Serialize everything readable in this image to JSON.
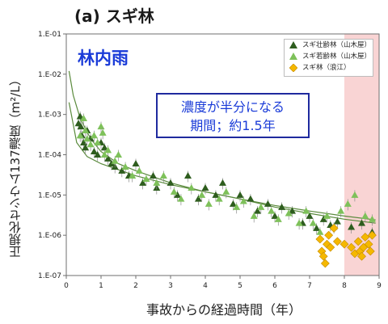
{
  "panel_title": "(a) スギ林",
  "inset_title": "林内雨",
  "callout": {
    "line1": "濃度が半分になる",
    "line2": "期間；約1.5年"
  },
  "colors": {
    "dark_green": "#2e5d1e",
    "light_green": "#7ec15a",
    "orange": "#f5b800",
    "band": "#f9d4d4",
    "curve": "#5a8a3c"
  },
  "chart_data": {
    "type": "scatter",
    "title": "",
    "xlabel": "事故からの経過時間（年）",
    "ylabel": "正規化セシウム137濃度（m²/L）",
    "xlim": [
      0,
      9
    ],
    "ylim": [
      1e-07,
      0.1
    ],
    "y_scale": "log",
    "x_ticks": [
      "0",
      "1",
      "2",
      "3",
      "4",
      "5",
      "6",
      "7",
      "8",
      "9"
    ],
    "y_ticks": [
      "1.E-07",
      "1.E-06",
      "1.E-05",
      "1.E-04",
      "1.E-03",
      "1.E-02",
      "1.E-01"
    ],
    "shaded_region": {
      "x_from": 8.0,
      "x_to": 9.0
    },
    "legend_position": "top-right",
    "series": [
      {
        "name": "スギ壮齢林（山木屋）",
        "marker": "triangle",
        "color": "#2e5d1e",
        "points": [
          [
            0.35,
            0.0006
          ],
          [
            0.4,
            0.0009
          ],
          [
            0.42,
            0.0005
          ],
          [
            0.45,
            0.0003
          ],
          [
            0.5,
            0.0002
          ],
          [
            0.55,
            0.00015
          ],
          [
            0.6,
            0.0004
          ],
          [
            0.7,
            0.00025
          ],
          [
            0.8,
            0.00012
          ],
          [
            0.9,
            0.0001
          ],
          [
            1.0,
            0.0002
          ],
          [
            1.1,
            0.00015
          ],
          [
            1.2,
            8e-05
          ],
          [
            1.3,
            6e-05
          ],
          [
            1.4,
            5e-05
          ],
          [
            1.6,
            4e-05
          ],
          [
            1.8,
            3e-05
          ],
          [
            2.0,
            6e-05
          ],
          [
            2.2,
            2e-05
          ],
          [
            2.5,
            3e-05
          ],
          [
            2.6,
            1.5e-05
          ],
          [
            3.0,
            2e-05
          ],
          [
            3.2,
            1e-05
          ],
          [
            3.5,
            3e-05
          ],
          [
            3.8,
            8e-06
          ],
          [
            4.0,
            1.5e-05
          ],
          [
            4.3,
            1e-05
          ],
          [
            4.5,
            2e-05
          ],
          [
            4.8,
            6e-06
          ],
          [
            5.0,
            1e-05
          ],
          [
            5.3,
            8e-06
          ],
          [
            5.5,
            4e-06
          ],
          [
            5.8,
            6e-06
          ],
          [
            6.0,
            3e-06
          ],
          [
            6.2,
            5e-06
          ],
          [
            6.5,
            4e-06
          ],
          [
            6.8,
            2e-06
          ],
          [
            7.0,
            3e-06
          ],
          [
            7.2,
            1.5e-06
          ],
          [
            7.4,
            2.5e-06
          ],
          [
            7.6,
            1.8e-06
          ],
          [
            7.8,
            2.2e-06
          ],
          [
            8.2,
            1.6e-06
          ],
          [
            8.5,
            2e-06
          ],
          [
            8.8,
            1.2e-06
          ]
        ]
      },
      {
        "name": "スギ若齢林（山木屋）",
        "marker": "triangle",
        "color": "#7ec15a",
        "points": [
          [
            0.4,
            0.0003
          ],
          [
            0.5,
            0.0008
          ],
          [
            0.55,
            0.0004
          ],
          [
            0.6,
            0.00025
          ],
          [
            0.7,
            0.00018
          ],
          [
            0.8,
            0.0003
          ],
          [
            0.9,
            0.0002
          ],
          [
            1.0,
            0.0005
          ],
          [
            1.05,
            0.00035
          ],
          [
            1.1,
            0.0001
          ],
          [
            1.2,
            0.00013
          ],
          [
            1.4,
            7e-05
          ],
          [
            1.5,
            0.0001
          ],
          [
            1.7,
            5e-05
          ],
          [
            1.9,
            3e-05
          ],
          [
            2.1,
            4e-05
          ],
          [
            2.3,
            2.5e-05
          ],
          [
            2.6,
            2e-05
          ],
          [
            2.8,
            3e-05
          ],
          [
            3.1,
            1.2e-05
          ],
          [
            3.3,
            8e-06
          ],
          [
            3.6,
            1.5e-05
          ],
          [
            3.9,
            1e-05
          ],
          [
            4.1,
            6e-06
          ],
          [
            4.4,
            8e-06
          ],
          [
            4.6,
            1.2e-05
          ],
          [
            4.9,
            5e-06
          ],
          [
            5.1,
            7e-06
          ],
          [
            5.4,
            3e-06
          ],
          [
            5.6,
            5e-06
          ],
          [
            5.9,
            4e-06
          ],
          [
            6.1,
            2.5e-06
          ],
          [
            6.4,
            3.5e-06
          ],
          [
            6.7,
            2e-06
          ],
          [
            6.9,
            4e-06
          ],
          [
            7.1,
            2e-06
          ],
          [
            7.3,
            1.2e-06
          ],
          [
            7.5,
            3e-06
          ],
          [
            7.7,
            1.6e-06
          ],
          [
            7.9,
            4e-06
          ],
          [
            8.1,
            6e-06
          ],
          [
            8.3,
            1e-05
          ],
          [
            8.6,
            3e-06
          ],
          [
            8.8,
            2.5e-06
          ]
        ]
      },
      {
        "name": "スギ林（浪江）",
        "marker": "diamond",
        "color": "#f5b800",
        "points": [
          [
            7.3,
            8e-07
          ],
          [
            7.35,
            4e-07
          ],
          [
            7.4,
            3e-07
          ],
          [
            7.45,
            2e-07
          ],
          [
            7.5,
            6e-07
          ],
          [
            7.55,
            1e-06
          ],
          [
            7.6,
            5e-07
          ],
          [
            7.7,
            1.5e-06
          ],
          [
            7.8,
            7e-07
          ],
          [
            8.0,
            6e-07
          ],
          [
            8.2,
            5e-07
          ],
          [
            8.3,
            3.5e-07
          ],
          [
            8.4,
            7e-07
          ],
          [
            8.45,
            4e-07
          ],
          [
            8.5,
            3e-07
          ],
          [
            8.55,
            5e-07
          ],
          [
            8.6,
            9e-07
          ],
          [
            8.7,
            6e-07
          ],
          [
            8.75,
            4e-07
          ],
          [
            8.8,
            1e-06
          ]
        ]
      }
    ],
    "fit_curves": [
      {
        "series": "スギ壮齢林（山木屋）",
        "points": [
          [
            0.08,
            0.002
          ],
          [
            0.3,
            0.0002
          ],
          [
            0.6,
            9e-05
          ],
          [
            1,
            6e-05
          ],
          [
            2,
            3e-05
          ],
          [
            3,
            1.8e-05
          ],
          [
            4,
            1.2e-05
          ],
          [
            5,
            8e-06
          ],
          [
            6,
            5.5e-06
          ],
          [
            7,
            4e-06
          ],
          [
            8,
            3e-06
          ],
          [
            8.9,
            2.4e-06
          ]
        ]
      },
      {
        "series": "スギ若齢林（山木屋）",
        "points": [
          [
            0.08,
            0.012
          ],
          [
            0.2,
            0.003
          ],
          [
            0.4,
            0.0008
          ],
          [
            0.7,
            0.00025
          ],
          [
            1,
            0.00012
          ],
          [
            1.5,
            6e-05
          ],
          [
            2,
            4e-05
          ],
          [
            3,
            2e-05
          ],
          [
            4,
            1.2e-05
          ],
          [
            5,
            8e-06
          ],
          [
            6,
            5e-06
          ],
          [
            7,
            3.5e-06
          ],
          [
            8,
            2.5e-06
          ],
          [
            8.9,
            2e-06
          ]
        ]
      }
    ]
  }
}
